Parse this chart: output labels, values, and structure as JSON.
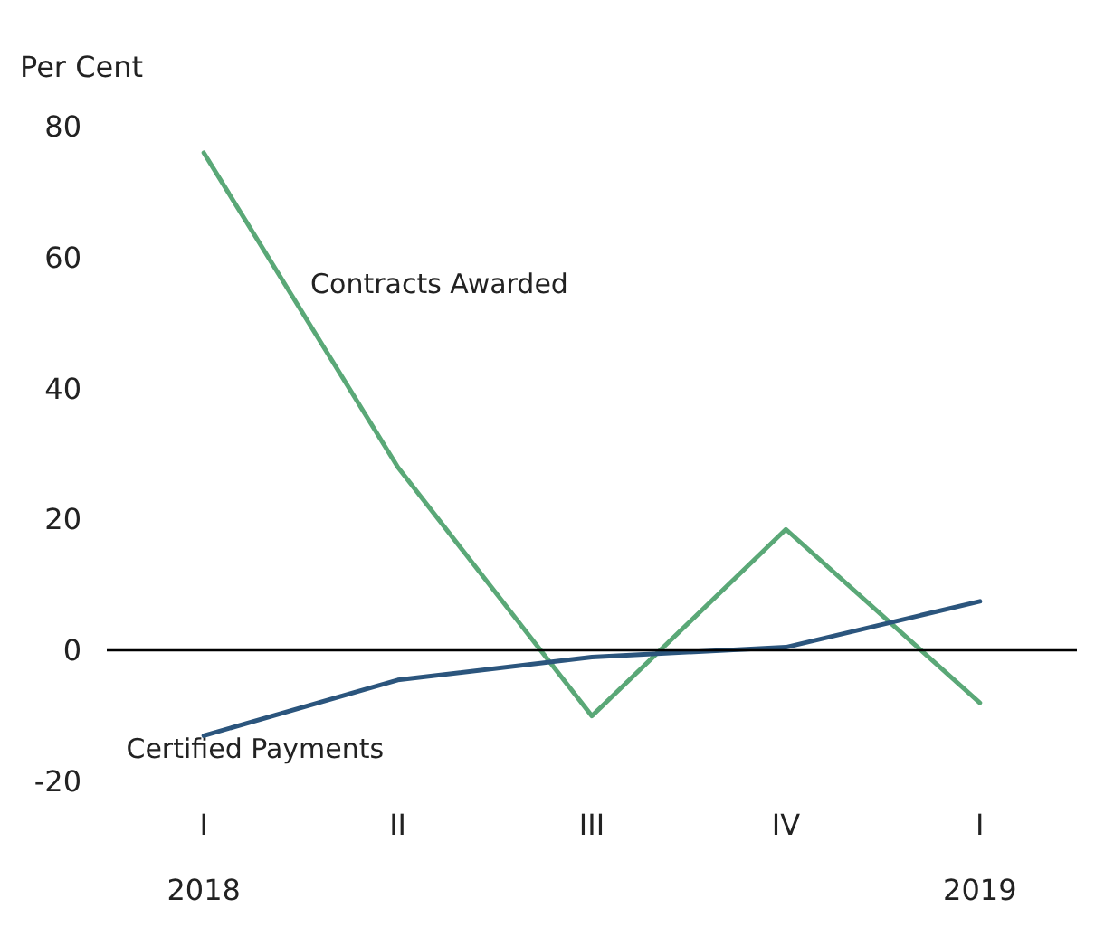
{
  "chart_data": {
    "type": "line",
    "ylabel": "Per Cent",
    "categories": [
      "I\n2018",
      "II",
      "III",
      "IV",
      "I\n2019"
    ],
    "series": [
      {
        "name": "Contracts Awarded",
        "color": "#5aa877",
        "values": [
          76,
          28,
          -10,
          18.5,
          -8
        ]
      },
      {
        "name": "Certified Payments",
        "color": "#2b557d",
        "values": [
          -13,
          -4.5,
          -1,
          0.5,
          7.5
        ]
      }
    ],
    "ylim": [
      -20,
      80
    ],
    "yticks": [
      -20,
      0,
      20,
      40,
      60,
      80
    ],
    "grid": false,
    "legend": false,
    "marker": "none",
    "line_style": "solid",
    "ref_lines": [
      {
        "axis": "y",
        "value": 0,
        "color": "#000000"
      }
    ]
  }
}
